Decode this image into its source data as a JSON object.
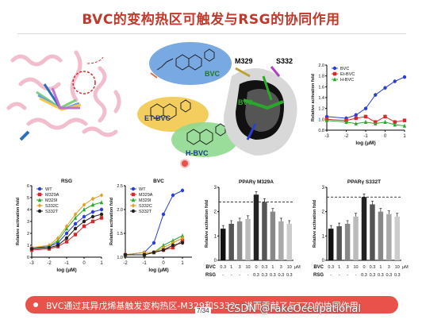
{
  "slide": {
    "title": "BVC的变构热区可触发与RSG的协同作用",
    "bullet": "BVC通过其异戊烯基触发变构热区-M329和S332，进而贡献了与TZD的协同作用",
    "page": "7/34",
    "watermark": "CSDN @FakeOccupational"
  },
  "structure": {
    "residue_labels": [
      "M329",
      "S332"
    ],
    "ligand_label": "BVC",
    "compound_labels": [
      "BVC",
      "ET-BVC",
      "H-BVC"
    ],
    "colors": {
      "bvc_bubble": "#6aa0e0",
      "etbvc_bubble": "#f2c94c",
      "hbvc_bubble": "#7fcf7f",
      "protein": "#f1b7c8"
    }
  },
  "chart_data": [
    {
      "id": "top_right",
      "type": "line",
      "title": "",
      "xlabel": "log (μM)",
      "ylabel": "Relative activation fold",
      "xlim": [
        -3,
        1
      ],
      "ylim": [
        0.8,
        2.0
      ],
      "xticks": [
        -3,
        -2,
        -1,
        0,
        1
      ],
      "yticks": [
        0.8,
        1.0,
        1.2,
        1.4,
        1.6,
        1.8,
        2.0
      ],
      "series": [
        {
          "name": "BVC",
          "color": "#2a3fd6",
          "marker": "circle",
          "x": [
            -3,
            -2,
            -1.5,
            -1,
            -0.5,
            0,
            0.5,
            1
          ],
          "y": [
            1.05,
            1.02,
            1.08,
            1.2,
            1.45,
            1.58,
            1.7,
            1.78
          ]
        },
        {
          "name": "Et-BVC",
          "color": "#d62a2a",
          "marker": "square",
          "x": [
            -3,
            -2,
            -1.5,
            -1,
            -0.5,
            0,
            0.5,
            1
          ],
          "y": [
            1.0,
            0.98,
            1.02,
            1.05,
            0.95,
            1.05,
            0.95,
            0.98
          ]
        },
        {
          "name": "H-BVC",
          "color": "#2aa82a",
          "marker": "triangle",
          "x": [
            -3,
            -2,
            -1.5,
            -1,
            -0.5,
            0,
            0.5,
            1
          ],
          "y": [
            0.98,
            0.95,
            0.92,
            0.95,
            0.92,
            0.95,
            0.9,
            0.88
          ]
        }
      ],
      "legend": "top-left"
    },
    {
      "id": "rsg",
      "type": "line",
      "title": "RSG",
      "xlabel": "log (μM)",
      "ylabel": "Relative activation fold",
      "xlim": [
        -3,
        1
      ],
      "ylim": [
        0,
        6
      ],
      "xticks": [
        -3,
        -2,
        -1,
        0,
        1
      ],
      "yticks": [
        0,
        1,
        2,
        3,
        4,
        5,
        6
      ],
      "series": [
        {
          "name": "WT",
          "color": "#2a3fd6",
          "marker": "circle",
          "x": [
            -3,
            -2,
            -1.5,
            -1,
            -0.5,
            0,
            0.5,
            1
          ],
          "y": [
            0.8,
            0.9,
            1.2,
            2.0,
            2.8,
            3.4,
            3.8,
            4.0
          ]
        },
        {
          "name": "M329A",
          "color": "#d62a2a",
          "marker": "square",
          "x": [
            -3,
            -2,
            -1.5,
            -1,
            -0.5,
            0,
            0.5,
            1
          ],
          "y": [
            0.6,
            0.7,
            0.9,
            1.3,
            1.9,
            2.6,
            3.0,
            3.3
          ]
        },
        {
          "name": "M329I",
          "color": "#2aa82a",
          "marker": "triangle",
          "x": [
            -3,
            -2,
            -1.5,
            -1,
            -0.5,
            0,
            0.5,
            1
          ],
          "y": [
            0.7,
            0.9,
            1.4,
            2.4,
            3.3,
            4.0,
            4.4,
            4.6
          ]
        },
        {
          "name": "S332C",
          "color": "#e0a020",
          "marker": "diamond",
          "x": [
            -3,
            -2,
            -1.5,
            -1,
            -0.5,
            0,
            0.5,
            1
          ],
          "y": [
            0.8,
            1.0,
            1.6,
            2.6,
            3.6,
            4.4,
            4.9,
            5.2
          ]
        },
        {
          "name": "S332T",
          "color": "#222222",
          "marker": "circle",
          "x": [
            -3,
            -2,
            -1.5,
            -1,
            -0.5,
            0,
            0.5,
            1
          ],
          "y": [
            0.7,
            0.8,
            1.0,
            1.6,
            2.4,
            3.0,
            3.4,
            3.6
          ]
        }
      ],
      "legend": "top-left"
    },
    {
      "id": "bvc",
      "type": "line",
      "title": "BVC",
      "xlabel": "log (μM)",
      "ylabel": "Relative activation fold",
      "xlim": [
        -2,
        1.5
      ],
      "ylim": [
        1.0,
        2.5
      ],
      "xticks": [
        -2,
        -1,
        0,
        1
      ],
      "yticks": [
        1.0,
        1.5,
        2.0,
        2.5
      ],
      "series": [
        {
          "name": "WT",
          "color": "#2a3fd6",
          "marker": "circle",
          "x": [
            -2,
            -1,
            -0.5,
            0,
            0.5,
            1
          ],
          "y": [
            1.05,
            1.1,
            1.3,
            1.9,
            2.3,
            2.4
          ]
        },
        {
          "name": "M329A",
          "color": "#d62a2a",
          "marker": "square",
          "x": [
            -2,
            -1,
            -0.5,
            0,
            0.5,
            1
          ],
          "y": [
            1.05,
            1.05,
            1.1,
            1.15,
            1.2,
            1.35
          ]
        },
        {
          "name": "M329I",
          "color": "#2aa82a",
          "marker": "triangle",
          "x": [
            -2,
            -1,
            -0.5,
            0,
            0.5,
            1
          ],
          "y": [
            1.05,
            1.05,
            1.1,
            1.25,
            1.35,
            1.45
          ]
        },
        {
          "name": "S332C",
          "color": "#e0a020",
          "marker": "diamond",
          "x": [
            -2,
            -1,
            -0.5,
            0,
            0.5,
            1
          ],
          "y": [
            1.05,
            1.1,
            1.1,
            1.2,
            1.3,
            1.4
          ]
        },
        {
          "name": "S332T",
          "color": "#222222",
          "marker": "circle",
          "x": [
            -2,
            -1,
            -0.5,
            0,
            0.5,
            1
          ],
          "y": [
            1.05,
            1.05,
            1.1,
            1.15,
            1.25,
            1.3
          ]
        }
      ],
      "legend": "top-left"
    },
    {
      "id": "m329a",
      "type": "bar",
      "title": "PPARγ M329A",
      "ylabel": "Relative activation fold",
      "ylim": [
        0,
        3
      ],
      "yticks": [
        0,
        1,
        2,
        3
      ],
      "reference_line": 2.4,
      "bvc_row_label": "BVC",
      "rsg_row_label": "RSG",
      "unit": "μM",
      "bvc": [
        "0.3",
        "1",
        "3",
        "10",
        "0",
        "0.3",
        "1",
        "3",
        "10"
      ],
      "rsg": [
        "-",
        "-",
        "-",
        "-",
        "0.3",
        "0.3",
        "0.3",
        "0.3",
        "0.3"
      ],
      "values": [
        1.3,
        1.5,
        1.6,
        1.7,
        2.7,
        2.4,
        2.0,
        1.6,
        1.5
      ],
      "colors": [
        "#111111",
        "#555555",
        "#888888",
        "#bbbbbb",
        "#222222",
        "#555555",
        "#888888",
        "#aaaaaa",
        "#cccccc"
      ]
    },
    {
      "id": "s332t",
      "type": "bar",
      "title": "PPARγ S332T",
      "ylabel": "Relative activation fold",
      "ylim": [
        0,
        3
      ],
      "yticks": [
        0,
        1,
        2,
        3
      ],
      "reference_line": 2.6,
      "bvc_row_label": "BVC",
      "rsg_row_label": "RSG",
      "unit": "μM",
      "bvc": [
        "0.3",
        "1",
        "3",
        "10",
        "0",
        "0.3",
        "1",
        "3",
        "10"
      ],
      "rsg": [
        "-",
        "-",
        "-",
        "-",
        "0.3",
        "0.3",
        "0.3",
        "0.3",
        "0.3"
      ],
      "values": [
        1.3,
        1.4,
        1.5,
        1.8,
        2.6,
        2.3,
        2.0,
        1.9,
        1.8
      ],
      "colors": [
        "#111111",
        "#555555",
        "#888888",
        "#bbbbbb",
        "#222222",
        "#555555",
        "#888888",
        "#aaaaaa",
        "#cccccc"
      ]
    }
  ]
}
